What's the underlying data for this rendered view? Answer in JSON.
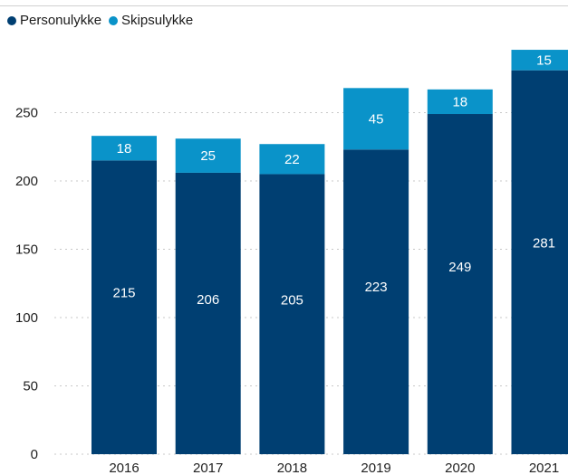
{
  "chart_data": {
    "type": "bar",
    "stacked": true,
    "categories": [
      "2016",
      "2017",
      "2018",
      "2019",
      "2020",
      "2021"
    ],
    "series": [
      {
        "name": "Personulykke",
        "color": "#003f72",
        "values": [
          215,
          206,
          205,
          223,
          249,
          281
        ]
      },
      {
        "name": "Skipsulykke",
        "color": "#0a93c9",
        "values": [
          18,
          25,
          22,
          45,
          18,
          15
        ]
      }
    ],
    "y_ticks": [
      "0",
      "50",
      "100",
      "150",
      "200",
      "250"
    ],
    "ylim": [
      0,
      300
    ],
    "grid": "dotted horizontal",
    "legend_position": "top-left"
  }
}
